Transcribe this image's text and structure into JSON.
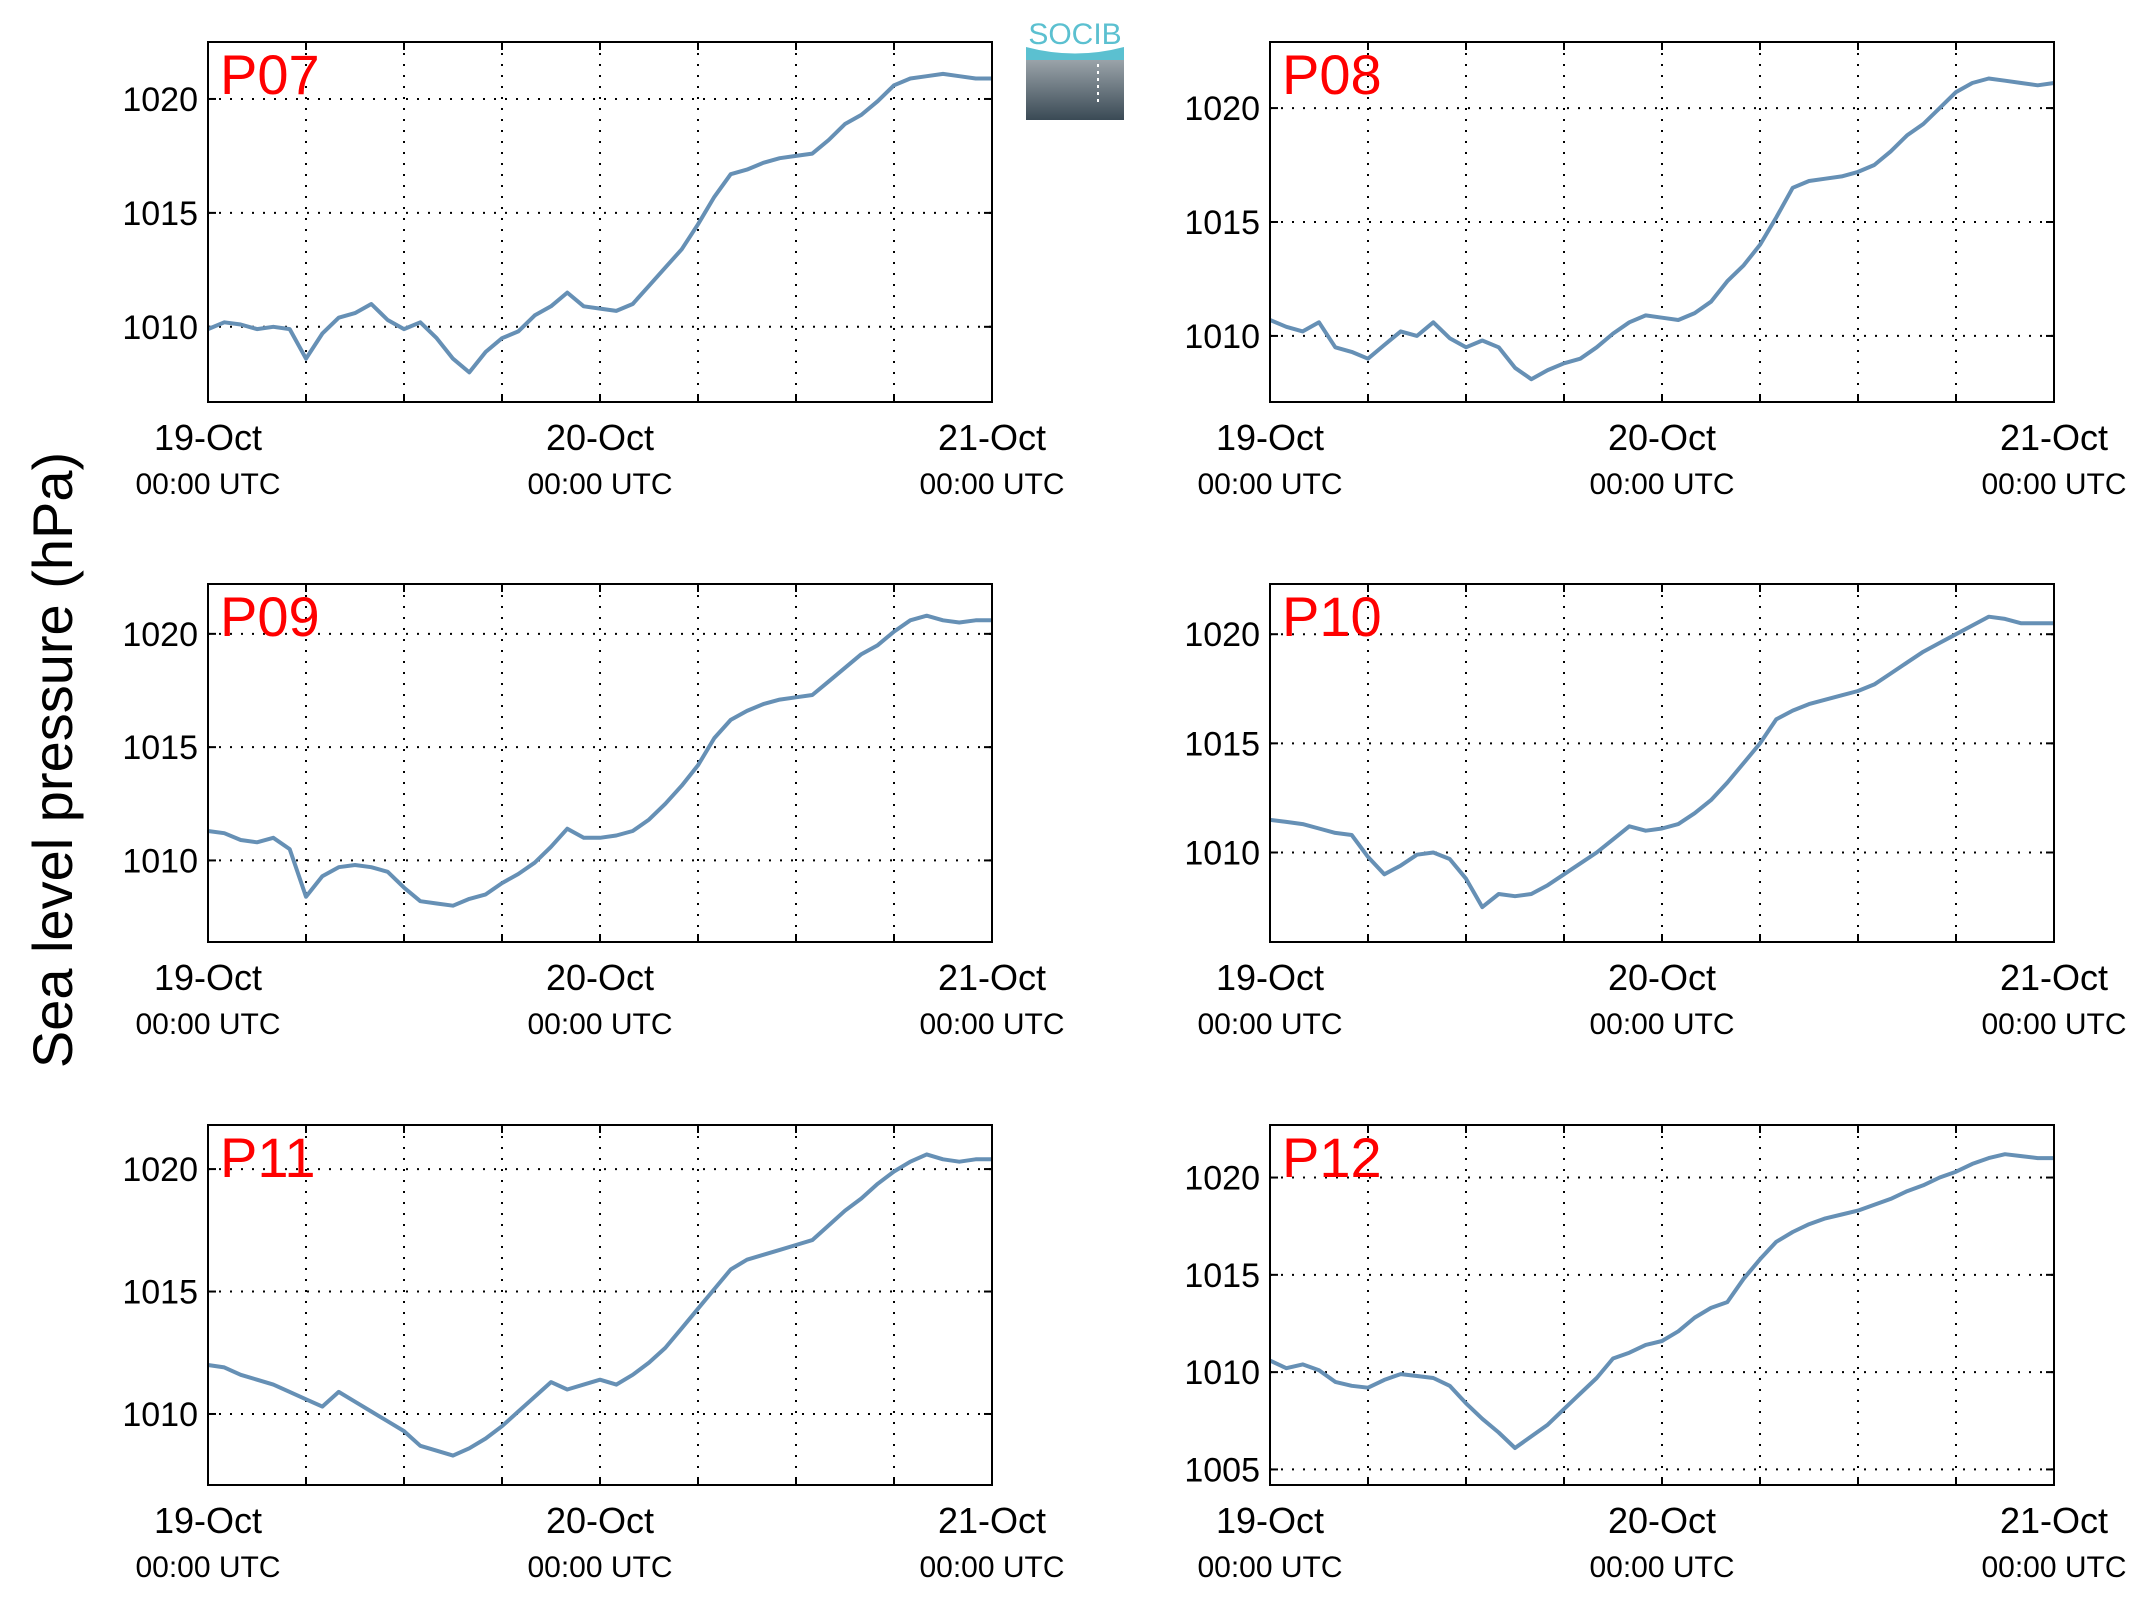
{
  "figure": {
    "ylabel": "Sea level pressure (hPa)",
    "logo_text": "SOCIB",
    "line_color": "#6690b5",
    "station_label_color": "#ff0000"
  },
  "chart_data": [
    {
      "type": "line",
      "station": "P07",
      "x_ticks": [
        {
          "date": "19-Oct",
          "time": "00:00 UTC"
        },
        {
          "date": "20-Oct",
          "time": "00:00 UTC"
        },
        {
          "date": "21-Oct",
          "time": "00:00 UTC"
        }
      ],
      "xlim_hours": [
        0,
        48
      ],
      "ylim": [
        1006.7,
        1022.5
      ],
      "yticks": [
        1010,
        1015,
        1020
      ],
      "grid": true,
      "series": [
        {
          "x_hours": [
            0,
            1,
            2,
            3,
            4,
            5,
            6,
            7,
            8,
            9,
            10,
            11,
            12,
            13,
            14,
            15,
            16,
            17,
            18,
            19,
            20,
            21,
            22,
            23,
            24,
            25,
            26,
            27,
            28,
            29,
            30,
            31,
            32,
            33,
            34,
            35,
            36,
            37,
            38,
            39,
            40,
            41,
            42,
            43,
            44,
            45,
            46,
            47,
            48
          ],
          "values": [
            1009.9,
            1010.2,
            1010.1,
            1009.9,
            1010.0,
            1009.9,
            1008.6,
            1009.7,
            1010.4,
            1010.6,
            1011.0,
            1010.3,
            1009.9,
            1010.2,
            1009.5,
            1008.6,
            1008.0,
            1008.9,
            1009.5,
            1009.8,
            1010.5,
            1010.9,
            1011.5,
            1010.9,
            1010.8,
            1010.7,
            1011.0,
            1011.8,
            1012.6,
            1013.4,
            1014.5,
            1015.7,
            1016.7,
            1016.9,
            1017.2,
            1017.4,
            1017.5,
            1017.6,
            1018.2,
            1018.9,
            1019.3,
            1019.9,
            1020.6,
            1020.9,
            1021.0,
            1021.1,
            1021.0,
            1020.9,
            1020.9
          ]
        }
      ]
    },
    {
      "type": "line",
      "station": "P08",
      "x_ticks": [
        {
          "date": "19-Oct",
          "time": "00:00 UTC"
        },
        {
          "date": "20-Oct",
          "time": "00:00 UTC"
        },
        {
          "date": "21-Oct",
          "time": "00:00 UTC"
        }
      ],
      "xlim_hours": [
        0,
        48
      ],
      "ylim": [
        1007.1,
        1022.9
      ],
      "yticks": [
        1010,
        1015,
        1020
      ],
      "grid": true,
      "series": [
        {
          "x_hours": [
            0,
            1,
            2,
            3,
            4,
            5,
            6,
            7,
            8,
            9,
            10,
            11,
            12,
            13,
            14,
            15,
            16,
            17,
            18,
            19,
            20,
            21,
            22,
            23,
            24,
            25,
            26,
            27,
            28,
            29,
            30,
            31,
            32,
            33,
            34,
            35,
            36,
            37,
            38,
            39,
            40,
            41,
            42,
            43,
            44,
            45,
            46,
            47,
            48
          ],
          "values": [
            1010.7,
            1010.4,
            1010.2,
            1010.6,
            1009.5,
            1009.3,
            1009.0,
            1009.6,
            1010.2,
            1010.0,
            1010.6,
            1009.9,
            1009.5,
            1009.8,
            1009.5,
            1008.6,
            1008.1,
            1008.5,
            1008.8,
            1009.0,
            1009.5,
            1010.1,
            1010.6,
            1010.9,
            1010.8,
            1010.7,
            1011.0,
            1011.5,
            1012.4,
            1013.1,
            1014.0,
            1015.2,
            1016.5,
            1016.8,
            1016.9,
            1017.0,
            1017.2,
            1017.5,
            1018.1,
            1018.8,
            1019.3,
            1020.0,
            1020.7,
            1021.1,
            1021.3,
            1021.2,
            1021.1,
            1021.0,
            1021.1
          ]
        }
      ]
    },
    {
      "type": "line",
      "station": "P09",
      "x_ticks": [
        {
          "date": "19-Oct",
          "time": "00:00 UTC"
        },
        {
          "date": "20-Oct",
          "time": "00:00 UTC"
        },
        {
          "date": "21-Oct",
          "time": "00:00 UTC"
        }
      ],
      "xlim_hours": [
        0,
        48
      ],
      "ylim": [
        1006.4,
        1022.2
      ],
      "yticks": [
        1010,
        1015,
        1020
      ],
      "grid": true,
      "series": [
        {
          "x_hours": [
            0,
            1,
            2,
            3,
            4,
            5,
            6,
            7,
            8,
            9,
            10,
            11,
            12,
            13,
            14,
            15,
            16,
            17,
            18,
            19,
            20,
            21,
            22,
            23,
            24,
            25,
            26,
            27,
            28,
            29,
            30,
            31,
            32,
            33,
            34,
            35,
            36,
            37,
            38,
            39,
            40,
            41,
            42,
            43,
            44,
            45,
            46,
            47,
            48
          ],
          "values": [
            1011.3,
            1011.2,
            1010.9,
            1010.8,
            1011.0,
            1010.5,
            1008.4,
            1009.3,
            1009.7,
            1009.8,
            1009.7,
            1009.5,
            1008.8,
            1008.2,
            1008.1,
            1008.0,
            1008.3,
            1008.5,
            1009.0,
            1009.4,
            1009.9,
            1010.6,
            1011.4,
            1011.0,
            1011.0,
            1011.1,
            1011.3,
            1011.8,
            1012.5,
            1013.3,
            1014.2,
            1015.4,
            1016.2,
            1016.6,
            1016.9,
            1017.1,
            1017.2,
            1017.3,
            1017.9,
            1018.5,
            1019.1,
            1019.5,
            1020.1,
            1020.6,
            1020.8,
            1020.6,
            1020.5,
            1020.6,
            1020.6
          ]
        }
      ]
    },
    {
      "type": "line",
      "station": "P10",
      "x_ticks": [
        {
          "date": "19-Oct",
          "time": "00:00 UTC"
        },
        {
          "date": "20-Oct",
          "time": "00:00 UTC"
        },
        {
          "date": "21-Oct",
          "time": "00:00 UTC"
        }
      ],
      "xlim_hours": [
        0,
        48
      ],
      "ylim": [
        1005.9,
        1022.3
      ],
      "yticks": [
        1010,
        1015,
        1020
      ],
      "grid": true,
      "series": [
        {
          "x_hours": [
            0,
            1,
            2,
            3,
            4,
            5,
            6,
            7,
            8,
            9,
            10,
            11,
            12,
            13,
            14,
            15,
            16,
            17,
            18,
            19,
            20,
            21,
            22,
            23,
            24,
            25,
            26,
            27,
            28,
            29,
            30,
            31,
            32,
            33,
            34,
            35,
            36,
            37,
            38,
            39,
            40,
            41,
            42,
            43,
            44,
            45,
            46,
            47,
            48
          ],
          "values": [
            1011.5,
            1011.4,
            1011.3,
            1011.1,
            1010.9,
            1010.8,
            1009.8,
            1009.0,
            1009.4,
            1009.9,
            1010.0,
            1009.7,
            1008.8,
            1007.5,
            1008.1,
            1008.0,
            1008.1,
            1008.5,
            1009.0,
            1009.5,
            1010.0,
            1010.6,
            1011.2,
            1011.0,
            1011.1,
            1011.3,
            1011.8,
            1012.4,
            1013.2,
            1014.1,
            1015.0,
            1016.1,
            1016.5,
            1016.8,
            1017.0,
            1017.2,
            1017.4,
            1017.7,
            1018.2,
            1018.7,
            1019.2,
            1019.6,
            1020.0,
            1020.4,
            1020.8,
            1020.7,
            1020.5,
            1020.5,
            1020.5
          ]
        }
      ]
    },
    {
      "type": "line",
      "station": "P11",
      "x_ticks": [
        {
          "date": "19-Oct",
          "time": "00:00 UTC"
        },
        {
          "date": "20-Oct",
          "time": "00:00 UTC"
        },
        {
          "date": "21-Oct",
          "time": "00:00 UTC"
        }
      ],
      "xlim_hours": [
        0,
        48
      ],
      "ylim": [
        1007.1,
        1021.8
      ],
      "yticks": [
        1010,
        1015,
        1020
      ],
      "grid": true,
      "series": [
        {
          "x_hours": [
            0,
            1,
            2,
            3,
            4,
            5,
            6,
            7,
            8,
            9,
            10,
            11,
            12,
            13,
            14,
            15,
            16,
            17,
            18,
            19,
            20,
            21,
            22,
            23,
            24,
            25,
            26,
            27,
            28,
            29,
            30,
            31,
            32,
            33,
            34,
            35,
            36,
            37,
            38,
            39,
            40,
            41,
            42,
            43,
            44,
            45,
            46,
            47,
            48
          ],
          "values": [
            1012.0,
            1011.9,
            1011.6,
            1011.4,
            1011.2,
            1010.9,
            1010.6,
            1010.3,
            1010.9,
            1010.5,
            1010.1,
            1009.7,
            1009.3,
            1008.7,
            1008.5,
            1008.3,
            1008.6,
            1009.0,
            1009.5,
            1010.1,
            1010.7,
            1011.3,
            1011.0,
            1011.2,
            1011.4,
            1011.2,
            1011.6,
            1012.1,
            1012.7,
            1013.5,
            1014.3,
            1015.1,
            1015.9,
            1016.3,
            1016.5,
            1016.7,
            1016.9,
            1017.1,
            1017.7,
            1018.3,
            1018.8,
            1019.4,
            1019.9,
            1020.3,
            1020.6,
            1020.4,
            1020.3,
            1020.4,
            1020.4
          ]
        }
      ]
    },
    {
      "type": "line",
      "station": "P12",
      "x_ticks": [
        {
          "date": "19-Oct",
          "time": "00:00 UTC"
        },
        {
          "date": "20-Oct",
          "time": "00:00 UTC"
        },
        {
          "date": "21-Oct",
          "time": "00:00 UTC"
        }
      ],
      "xlim_hours": [
        0,
        48
      ],
      "ylim": [
        1004.2,
        1022.7
      ],
      "yticks": [
        1005,
        1010,
        1015,
        1020
      ],
      "grid": true,
      "series": [
        {
          "x_hours": [
            0,
            1,
            2,
            3,
            4,
            5,
            6,
            7,
            8,
            9,
            10,
            11,
            12,
            13,
            14,
            15,
            16,
            17,
            18,
            19,
            20,
            21,
            22,
            23,
            24,
            25,
            26,
            27,
            28,
            29,
            30,
            31,
            32,
            33,
            34,
            35,
            36,
            37,
            38,
            39,
            40,
            41,
            42,
            43,
            44,
            45,
            46,
            47,
            48
          ],
          "values": [
            1010.6,
            1010.2,
            1010.4,
            1010.1,
            1009.5,
            1009.3,
            1009.2,
            1009.6,
            1009.9,
            1009.8,
            1009.7,
            1009.3,
            1008.4,
            1007.6,
            1006.9,
            1006.1,
            1006.7,
            1007.3,
            1008.1,
            1008.9,
            1009.7,
            1010.7,
            1011.0,
            1011.4,
            1011.6,
            1012.1,
            1012.8,
            1013.3,
            1013.6,
            1014.8,
            1015.8,
            1016.7,
            1017.2,
            1017.6,
            1017.9,
            1018.1,
            1018.3,
            1018.6,
            1018.9,
            1019.3,
            1019.6,
            1020.0,
            1020.3,
            1020.7,
            1021.0,
            1021.2,
            1021.1,
            1021.0,
            1021.0
          ]
        }
      ]
    }
  ]
}
